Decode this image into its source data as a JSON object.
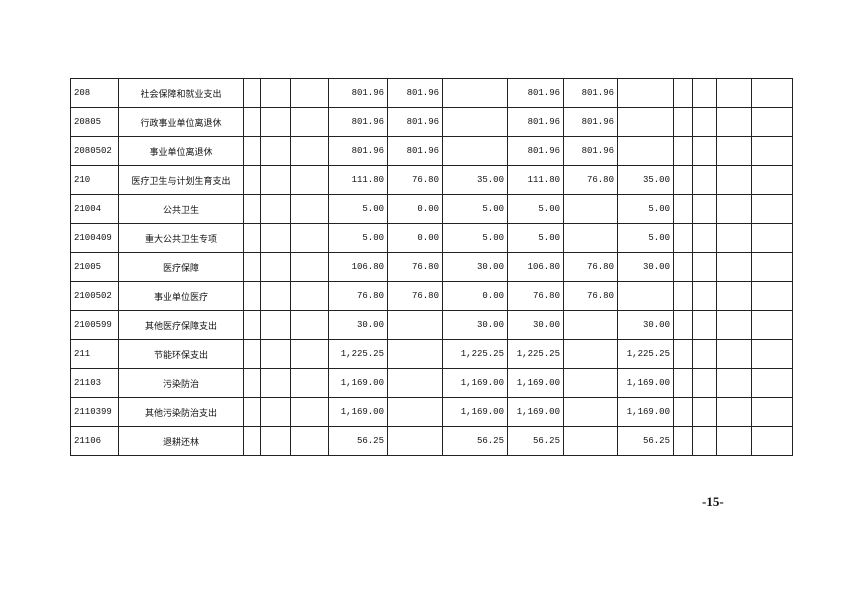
{
  "table": {
    "rows": [
      [
        "208",
        "社会保障和就业支出",
        "801.96",
        "801.96",
        null,
        "801.96",
        "801.96",
        null
      ],
      [
        "20805",
        "行政事业单位离退休",
        "801.96",
        "801.96",
        null,
        "801.96",
        "801.96",
        null
      ],
      [
        "2080502",
        "事业单位离退休",
        "801.96",
        "801.96",
        null,
        "801.96",
        "801.96",
        null
      ],
      [
        "210",
        "医疗卫生与计划生育支出",
        "111.80",
        "76.80",
        "35.00",
        "111.80",
        "76.80",
        "35.00"
      ],
      [
        "21004",
        "公共卫生",
        "5.00",
        "0.00",
        "5.00",
        "5.00",
        null,
        "5.00"
      ],
      [
        "2100409",
        "重大公共卫生专项",
        "5.00",
        "0.00",
        "5.00",
        "5.00",
        null,
        "5.00"
      ],
      [
        "21005",
        "医疗保障",
        "106.80",
        "76.80",
        "30.00",
        "106.80",
        "76.80",
        "30.00"
      ],
      [
        "2100502",
        "事业单位医疗",
        "76.80",
        "76.80",
        "0.00",
        "76.80",
        "76.80",
        null
      ],
      [
        "2100599",
        "其他医疗保障支出",
        "30.00",
        null,
        "30.00",
        "30.00",
        null,
        "30.00"
      ],
      [
        "211",
        "节能环保支出",
        "1,225.25",
        null,
        "1,225.25",
        "1,225.25",
        null,
        "1,225.25"
      ],
      [
        "21103",
        "污染防治",
        "1,169.00",
        null,
        "1,169.00",
        "1,169.00",
        null,
        "1,169.00"
      ],
      [
        "2110399",
        "其他污染防治支出",
        "1,169.00",
        null,
        "1,169.00",
        "1,169.00",
        null,
        "1,169.00"
      ],
      [
        "21106",
        "退耕还林",
        "56.25",
        null,
        "56.25",
        "56.25",
        null,
        "56.25"
      ]
    ]
  },
  "footer": {
    "page_number": "-15-"
  }
}
